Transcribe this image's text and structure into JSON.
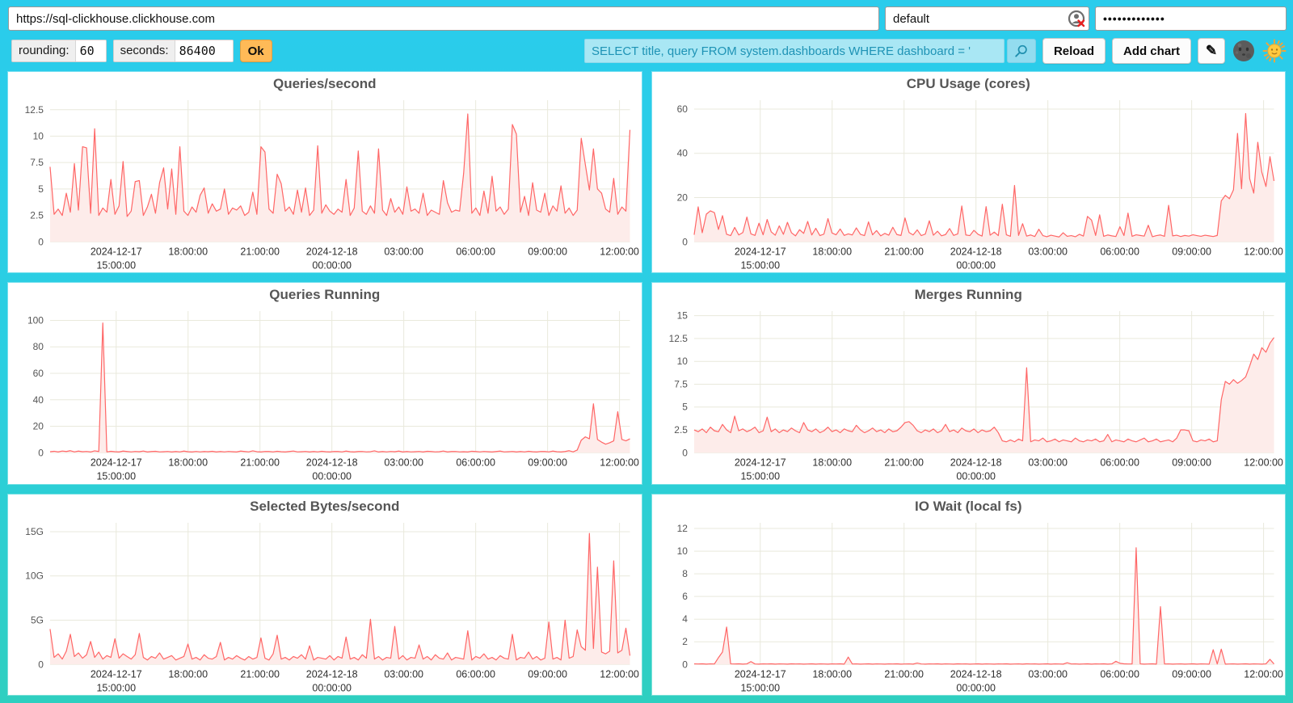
{
  "topbar": {
    "url": "https://sql-clickhouse.clickhouse.com",
    "user": "default",
    "password_masked": "•••••••••••••"
  },
  "controls": {
    "rounding_label": "rounding:",
    "rounding_value": "60",
    "seconds_label": "seconds:",
    "seconds_value": "86400",
    "ok_label": "Ok",
    "query_value": "SELECT title, query FROM system.dashboards WHERE dashboard = '",
    "reload_label": "Reload",
    "add_chart_label": "Add chart",
    "edit_glyph": "✎"
  },
  "colors": {
    "background_top": "#2accec",
    "background_bottom": "#2fcfc0",
    "line": "#ff6666",
    "area_fill": "#fdecea",
    "grid": "#e9e9dc",
    "axis_text": "#555555",
    "x_text": "#2e2e2e",
    "ok_button": "#ffba57",
    "query_bg": "#a9e7f4",
    "query_text": "#1e93b5"
  },
  "x_axis": {
    "ticks": [
      {
        "frac": 0.114,
        "lines": [
          "2024-12-17",
          "15:00:00"
        ]
      },
      {
        "frac": 0.238,
        "lines": [
          "18:00:00"
        ]
      },
      {
        "frac": 0.362,
        "lines": [
          "21:00:00"
        ]
      },
      {
        "frac": 0.486,
        "lines": [
          "2024-12-18",
          "00:00:00"
        ]
      },
      {
        "frac": 0.61,
        "lines": [
          "03:00:00"
        ]
      },
      {
        "frac": 0.734,
        "lines": [
          "06:00:00"
        ]
      },
      {
        "frac": 0.858,
        "lines": [
          "09:00:00"
        ]
      },
      {
        "frac": 0.982,
        "lines": [
          "12:00:00"
        ]
      }
    ]
  },
  "chart_data": {
    "type": "area",
    "x_range": [
      "2024-12-17 12:15:00",
      "2024-12-18 12:20:00"
    ],
    "charts": [
      {
        "title": "Queries/second",
        "ymax": 13.4,
        "yticks": [
          {
            "v": 0,
            "label": "0"
          },
          {
            "v": 2.5,
            "label": "2.5"
          },
          {
            "v": 5,
            "label": "5"
          },
          {
            "v": 7.5,
            "label": "7.5"
          },
          {
            "v": 10,
            "label": "10"
          },
          {
            "v": 12.5,
            "label": "12.5"
          }
        ],
        "values": [
          7.1,
          2.6,
          3.1,
          2.5,
          4.6,
          2.8,
          7.4,
          3.0,
          9.0,
          8.9,
          2.7,
          10.7,
          2.5,
          3.2,
          2.8,
          5.9,
          2.6,
          3.4,
          7.6,
          2.4,
          2.9,
          5.7,
          5.8,
          2.5,
          3.3,
          4.5,
          2.7,
          5.6,
          7.0,
          3.1,
          6.9,
          2.6,
          9.0,
          2.9,
          2.5,
          3.3,
          2.8,
          4.4,
          5.1,
          2.7,
          3.6,
          2.9,
          3.1,
          5.0,
          2.6,
          3.2,
          3.0,
          3.4,
          2.5,
          2.8,
          4.7,
          2.6,
          9.0,
          8.5,
          3.1,
          2.7,
          6.4,
          5.5,
          2.9,
          3.3,
          2.6,
          4.9,
          2.8,
          5.1,
          2.5,
          3.0,
          9.1,
          2.7,
          3.5,
          2.9,
          2.6,
          3.1,
          2.8,
          5.9,
          2.5,
          3.2,
          8.6,
          2.9,
          2.6,
          3.4,
          2.7,
          8.8,
          3.0,
          2.5,
          4.1,
          2.8,
          3.3,
          2.6,
          5.2,
          2.9,
          3.1,
          2.7,
          4.6,
          2.5,
          3.0,
          2.8,
          2.6,
          5.8,
          3.7,
          2.8,
          3.0,
          2.9,
          6.5,
          12.1,
          2.7,
          3.2,
          2.5,
          4.8,
          2.7,
          6.2,
          2.9,
          3.3,
          2.6,
          3.1,
          11.1,
          10.2,
          2.8,
          4.3,
          2.5,
          5.6,
          3.0,
          2.8,
          4.6,
          2.5,
          3.4,
          2.9,
          5.3,
          2.7,
          3.2,
          2.5,
          3.0,
          9.8,
          7.3,
          4.9,
          8.8,
          5.0,
          4.6,
          3.1,
          2.8,
          6.0,
          2.6,
          3.3,
          2.9,
          10.6
        ]
      },
      {
        "title": "CPU Usage (cores)",
        "ymax": 64,
        "yticks": [
          {
            "v": 0,
            "label": "0"
          },
          {
            "v": 20,
            "label": "20"
          },
          {
            "v": 40,
            "label": "40"
          },
          {
            "v": 60,
            "label": "60"
          }
        ],
        "values": [
          3.2,
          15.8,
          4.1,
          12.5,
          14.0,
          13.2,
          5.6,
          11.8,
          3.4,
          2.8,
          6.5,
          3.1,
          4.2,
          11.2,
          3.6,
          2.9,
          8.4,
          3.2,
          10.1,
          4.5,
          3.0,
          7.2,
          3.4,
          8.8,
          4.1,
          2.7,
          5.5,
          3.8,
          9.2,
          3.1,
          6.1,
          2.8,
          3.5,
          10.5,
          4.0,
          3.2,
          5.8,
          2.9,
          3.6,
          3.1,
          6.3,
          3.4,
          2.8,
          9.0,
          3.2,
          5.1,
          2.7,
          3.8,
          3.0,
          6.6,
          3.3,
          2.9,
          10.8,
          4.2,
          3.1,
          5.4,
          2.8,
          3.5,
          9.5,
          3.0,
          4.8,
          2.7,
          3.3,
          6.0,
          2.9,
          3.6,
          16.2,
          3.1,
          2.8,
          5.2,
          3.4,
          2.6,
          15.9,
          3.0,
          4.4,
          2.8,
          17.0,
          3.2,
          2.5,
          25.5,
          2.9,
          8.2,
          2.6,
          3.1,
          2.4,
          5.7,
          2.8,
          2.3,
          3.0,
          2.6,
          2.2,
          4.1,
          2.5,
          2.8,
          2.3,
          3.4,
          2.6,
          11.5,
          9.8,
          2.9,
          12.2,
          2.5,
          3.1,
          2.7,
          2.4,
          6.8,
          2.8,
          13.0,
          2.5,
          3.2,
          2.9,
          2.6,
          7.5,
          2.3,
          2.8,
          3.1,
          2.5,
          16.5,
          2.7,
          3.0,
          2.4,
          2.9,
          2.6,
          3.2,
          2.8,
          2.5,
          3.0,
          2.7,
          2.4,
          2.9,
          18.5,
          21.0,
          19.5,
          23.5,
          49.0,
          24.0,
          58.0,
          28.5,
          22.0,
          45.0,
          31.5,
          25.0,
          38.5,
          27.5
        ]
      },
      {
        "title": "Queries Running",
        "ymax": 107,
        "yticks": [
          {
            "v": 0,
            "label": "0"
          },
          {
            "v": 20,
            "label": "20"
          },
          {
            "v": 40,
            "label": "40"
          },
          {
            "v": 60,
            "label": "60"
          },
          {
            "v": 80,
            "label": "80"
          },
          {
            "v": 100,
            "label": "100"
          }
        ],
        "values": [
          0.8,
          1.1,
          0.6,
          1.3,
          0.9,
          1.5,
          0.7,
          1.2,
          0.8,
          1.0,
          0.6,
          1.4,
          0.9,
          98.0,
          0.7,
          1.1,
          0.8,
          0.6,
          1.2,
          0.9,
          0.7,
          1.0,
          0.8,
          1.3,
          0.6,
          0.9,
          1.1,
          0.7,
          0.8,
          1.0,
          0.6,
          0.9,
          0.7,
          1.2,
          0.8,
          0.6,
          1.0,
          0.7,
          0.9,
          0.8,
          1.1,
          0.6,
          0.9,
          0.7,
          1.0,
          0.8,
          0.6,
          1.2,
          0.9,
          0.7,
          1.4,
          0.8,
          0.6,
          1.0,
          0.9,
          0.7,
          1.1,
          0.8,
          0.6,
          0.9,
          1.3,
          0.7,
          0.8,
          1.0,
          0.6,
          0.9,
          0.7,
          1.1,
          0.8,
          0.6,
          1.0,
          0.9,
          0.7,
          1.2,
          0.8,
          0.6,
          0.9,
          1.0,
          0.7,
          0.8,
          1.4,
          0.6,
          0.9,
          0.7,
          1.0,
          0.8,
          1.2,
          0.6,
          0.9,
          0.7,
          0.8,
          1.0,
          0.6,
          1.1,
          0.9,
          0.7,
          0.8,
          1.3,
          0.6,
          0.9,
          1.0,
          0.7,
          0.8,
          0.6,
          1.1,
          0.9,
          0.7,
          1.0,
          0.8,
          0.6,
          0.9,
          1.2,
          0.7,
          0.8,
          1.0,
          0.6,
          0.9,
          0.7,
          1.1,
          0.8,
          0.6,
          1.0,
          0.9,
          0.7,
          1.2,
          0.8,
          0.6,
          0.9,
          1.5,
          0.7,
          2.0,
          9.5,
          12.0,
          10.5,
          37.0,
          10.0,
          8.0,
          6.5,
          7.5,
          9.0,
          31.0,
          10.0,
          9.0,
          10.5
        ]
      },
      {
        "title": "Merges Running",
        "ymax": 15.5,
        "yticks": [
          {
            "v": 0,
            "label": "0"
          },
          {
            "v": 2.5,
            "label": "2.5"
          },
          {
            "v": 5,
            "label": "5"
          },
          {
            "v": 7.5,
            "label": "7.5"
          },
          {
            "v": 10,
            "label": "10"
          },
          {
            "v": 12.5,
            "label": "12.5"
          },
          {
            "v": 15,
            "label": "15"
          }
        ],
        "values": [
          2.5,
          2.3,
          2.6,
          2.2,
          2.8,
          2.4,
          2.3,
          3.1,
          2.5,
          2.2,
          4.0,
          2.4,
          2.6,
          2.3,
          2.5,
          2.8,
          2.2,
          2.4,
          3.9,
          2.3,
          2.6,
          2.2,
          2.5,
          2.3,
          2.7,
          2.4,
          2.2,
          3.3,
          2.5,
          2.3,
          2.6,
          2.2,
          2.4,
          2.8,
          2.3,
          2.5,
          2.2,
          2.6,
          2.4,
          2.3,
          3.0,
          2.5,
          2.2,
          2.4,
          2.7,
          2.3,
          2.5,
          2.2,
          2.6,
          2.3,
          2.4,
          2.8,
          3.3,
          3.4,
          3.0,
          2.4,
          2.2,
          2.5,
          2.3,
          2.6,
          2.2,
          2.4,
          3.1,
          2.3,
          2.5,
          2.2,
          2.7,
          2.4,
          2.3,
          2.6,
          2.2,
          2.5,
          2.3,
          2.4,
          2.8,
          2.2,
          1.3,
          1.2,
          1.4,
          1.2,
          1.5,
          1.3,
          9.3,
          1.2,
          1.4,
          1.3,
          1.6,
          1.2,
          1.3,
          1.5,
          1.2,
          1.4,
          1.3,
          1.2,
          1.6,
          1.3,
          1.2,
          1.4,
          1.3,
          1.5,
          1.2,
          1.3,
          2.0,
          1.2,
          1.4,
          1.3,
          1.2,
          1.5,
          1.3,
          1.2,
          1.4,
          1.6,
          1.2,
          1.3,
          1.5,
          1.2,
          1.3,
          1.4,
          1.2,
          1.6,
          2.5,
          2.5,
          2.4,
          1.3,
          1.2,
          1.4,
          1.3,
          1.5,
          1.2,
          1.3,
          5.8,
          7.8,
          7.5,
          8.0,
          7.6,
          7.9,
          8.3,
          9.5,
          10.8,
          10.2,
          11.5,
          11.0,
          12.0,
          12.6
        ]
      },
      {
        "title": "Selected Bytes/second",
        "ymax": 16,
        "yticks": [
          {
            "v": 0,
            "label": "0"
          },
          {
            "v": 5,
            "label": "5G"
          },
          {
            "v": 10,
            "label": "10G"
          },
          {
            "v": 15,
            "label": "15G"
          }
        ],
        "values": [
          4.0,
          0.8,
          1.2,
          0.6,
          1.5,
          3.4,
          0.9,
          1.3,
          0.7,
          1.1,
          2.6,
          0.8,
          1.4,
          0.6,
          1.0,
          0.8,
          2.9,
          0.7,
          1.2,
          0.9,
          0.6,
          1.1,
          3.5,
          0.8,
          0.5,
          0.9,
          0.7,
          1.3,
          0.6,
          0.8,
          1.0,
          0.5,
          0.7,
          0.9,
          2.3,
          0.6,
          0.8,
          0.5,
          1.1,
          0.7,
          0.6,
          0.9,
          2.5,
          0.5,
          0.8,
          0.6,
          1.0,
          0.7,
          0.5,
          0.9,
          0.6,
          0.8,
          3.0,
          0.7,
          0.5,
          1.2,
          3.3,
          0.6,
          0.8,
          0.5,
          0.9,
          0.7,
          1.1,
          0.6,
          2.1,
          0.5,
          0.8,
          0.7,
          0.6,
          1.0,
          0.5,
          0.9,
          0.7,
          3.1,
          0.6,
          0.8,
          0.5,
          1.1,
          0.7,
          5.1,
          0.6,
          0.9,
          0.5,
          0.8,
          0.7,
          4.3,
          0.6,
          1.0,
          0.5,
          0.8,
          0.7,
          2.2,
          0.6,
          0.9,
          0.5,
          1.1,
          0.7,
          0.6,
          1.3,
          0.5,
          0.8,
          0.7,
          0.6,
          3.8,
          0.5,
          0.9,
          0.7,
          1.2,
          0.6,
          0.8,
          0.5,
          1.0,
          0.7,
          0.6,
          3.4,
          0.5,
          0.8,
          0.7,
          1.4,
          0.6,
          0.9,
          0.5,
          0.7,
          4.8,
          0.6,
          0.8,
          0.5,
          5.0,
          0.7,
          0.9,
          3.9,
          2.0,
          1.6,
          14.8,
          1.8,
          11.0,
          1.4,
          1.2,
          1.5,
          11.7,
          1.3,
          1.6,
          4.1,
          1.0
        ]
      },
      {
        "title": "IO Wait (local fs)",
        "ymax": 12.5,
        "yticks": [
          {
            "v": 0,
            "label": "0"
          },
          {
            "v": 2,
            "label": "2"
          },
          {
            "v": 4,
            "label": "4"
          },
          {
            "v": 6,
            "label": "6"
          },
          {
            "v": 8,
            "label": "8"
          },
          {
            "v": 10,
            "label": "10"
          },
          {
            "v": 12,
            "label": "12"
          }
        ],
        "values": [
          0.05,
          0.04,
          0.06,
          0.03,
          0.05,
          0.04,
          0.6,
          1.1,
          3.3,
          0.05,
          0.04,
          0.06,
          0.03,
          0.05,
          0.25,
          0.04,
          0.03,
          0.05,
          0.04,
          0.06,
          0.03,
          0.05,
          0.04,
          0.03,
          0.06,
          0.04,
          0.05,
          0.03,
          0.04,
          0.06,
          0.03,
          0.05,
          0.04,
          0.03,
          0.05,
          0.04,
          0.06,
          0.03,
          0.65,
          0.04,
          0.05,
          0.03,
          0.04,
          0.06,
          0.03,
          0.05,
          0.04,
          0.03,
          0.05,
          0.04,
          0.06,
          0.03,
          0.04,
          0.05,
          0.03,
          0.12,
          0.04,
          0.03,
          0.05,
          0.04,
          0.06,
          0.03,
          0.05,
          0.04,
          0.03,
          0.06,
          0.04,
          0.05,
          0.03,
          0.04,
          0.06,
          0.03,
          0.05,
          0.04,
          0.03,
          0.05,
          0.04,
          0.06,
          0.03,
          0.04,
          0.05,
          0.03,
          0.06,
          0.04,
          0.05,
          0.03,
          0.04,
          0.06,
          0.03,
          0.05,
          0.04,
          0.03,
          0.15,
          0.04,
          0.05,
          0.03,
          0.04,
          0.06,
          0.03,
          0.05,
          0.04,
          0.06,
          0.03,
          0.05,
          0.28,
          0.1,
          0.06,
          0.04,
          0.04,
          10.3,
          0.05,
          0.03,
          0.04,
          0.06,
          0.03,
          5.1,
          0.04,
          0.05,
          0.03,
          0.04,
          0.05,
          0.03,
          0.04,
          0.06,
          0.03,
          0.05,
          0.04,
          0.03,
          1.3,
          0.04,
          1.35,
          0.03,
          0.04,
          0.05,
          0.03,
          0.04,
          0.06,
          0.03,
          0.05,
          0.04,
          0.03,
          0.05,
          0.45,
          0.04
        ]
      }
    ]
  }
}
